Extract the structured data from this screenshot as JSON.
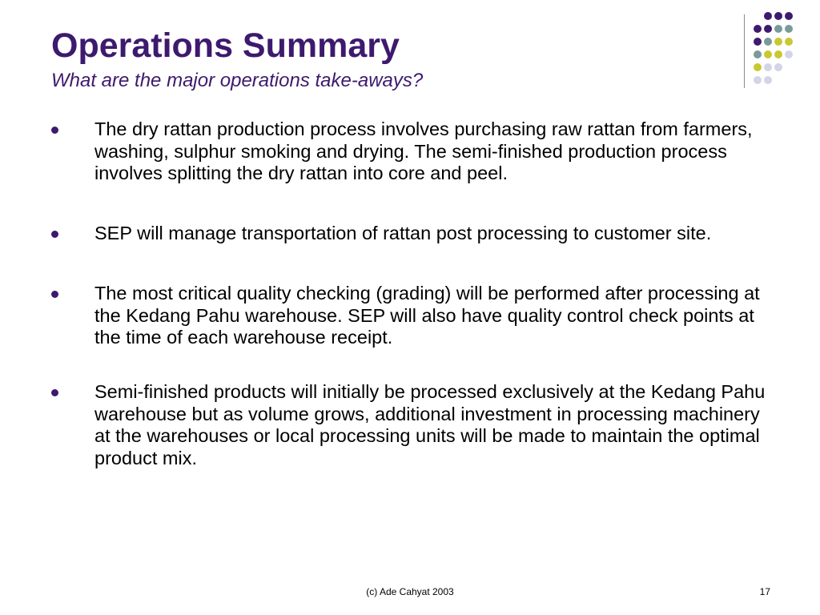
{
  "slide": {
    "title": "Operations Summary",
    "subtitle": "What are the major operations take-aways?",
    "bullets": [
      "The dry rattan production process involves purchasing raw rattan from farmers, washing, sulphur smoking and drying. The semi-finished production process involves splitting the dry rattan into core and peel.",
      "SEP will manage transportation of rattan post processing to customer site.",
      "The most critical quality checking (grading) will be performed after processing at the Kedang Pahu warehouse. SEP will also have quality control check points at the time of each warehouse receipt.",
      "Semi-finished products will initially be processed exclusively at the Kedang Pahu warehouse but as volume grows, additional investment in processing machinery at the warehouses or local processing units will be made to maintain the optimal product mix."
    ]
  },
  "footer": {
    "copyright": "(c) Ade Cahyat 2003",
    "page_number": "17"
  },
  "colors": {
    "title": "#3d1a6e",
    "dot_purple": "#3d1a6e",
    "dot_teal": "#7a9a9a",
    "dot_yellow": "#c8c832",
    "dot_lavender": "#d4d4e8"
  }
}
